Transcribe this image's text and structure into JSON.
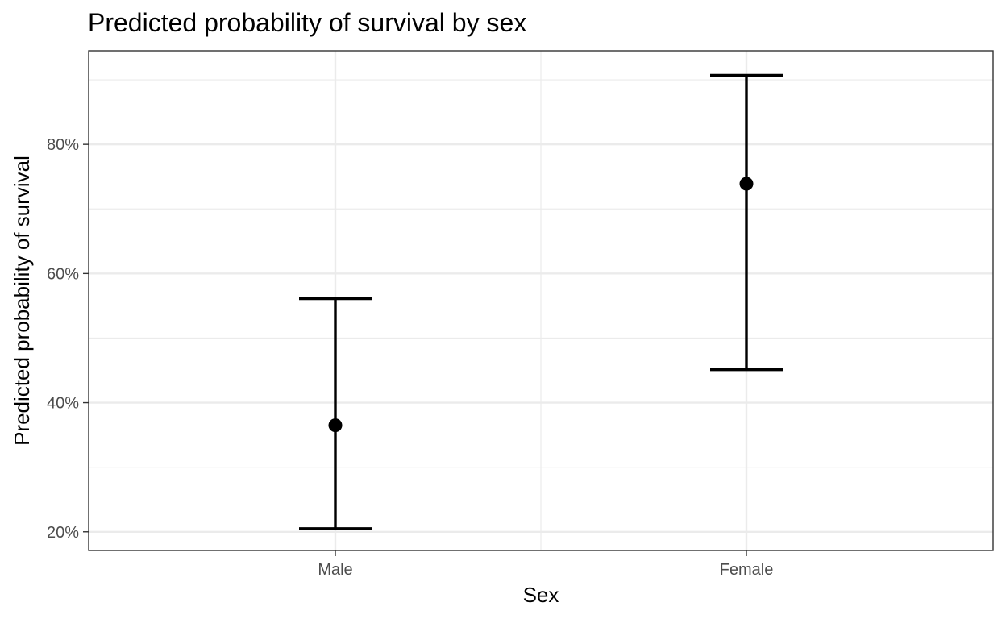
{
  "chart_data": {
    "type": "errorbar",
    "title": "Predicted probability of survival by sex",
    "xlabel": "Sex",
    "ylabel": "Predicted probability of survival",
    "categories": [
      "Male",
      "Female"
    ],
    "points": [
      {
        "category": "Male",
        "estimate": 0.365,
        "lower": 0.205,
        "upper": 0.561
      },
      {
        "category": "Female",
        "estimate": 0.739,
        "lower": 0.451,
        "upper": 0.907
      }
    ],
    "ylim": [
      0.171,
      0.945
    ],
    "y_ticks": [
      0.2,
      0.4,
      0.6,
      0.8
    ],
    "y_tick_labels": [
      "20%",
      "40%",
      "60%",
      "80%"
    ],
    "grid": true,
    "legend": "none",
    "colors": {
      "marks": "#000000",
      "grid": "#ebebeb",
      "panel_border": "#333333",
      "tick_text": "#4d4d4d"
    }
  }
}
